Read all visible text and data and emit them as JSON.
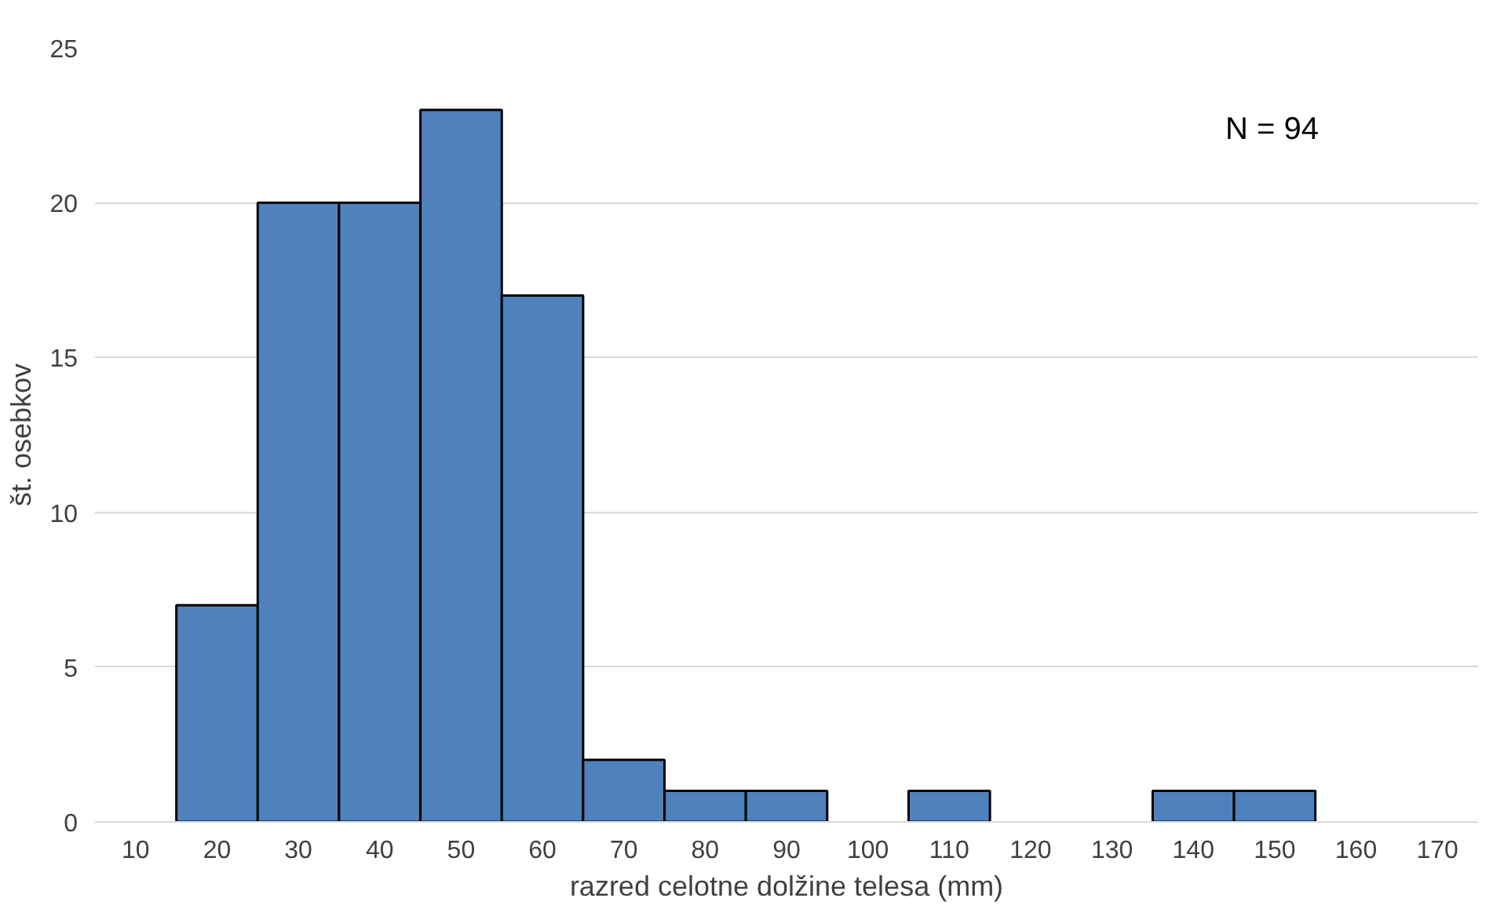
{
  "chart_data": {
    "type": "histogram",
    "xlabel": "razred celotne dolžine telesa (mm)",
    "ylabel": "št. osebkov",
    "bins": [
      15,
      25,
      35,
      45,
      55,
      65,
      75,
      85,
      95,
      105,
      115,
      125,
      135,
      145,
      155
    ],
    "values": [
      7,
      20,
      20,
      23,
      17,
      2,
      1,
      1,
      0,
      1,
      0,
      0,
      1,
      1
    ],
    "color": "#4f81bd",
    "xlim": [
      5,
      175
    ],
    "xticks": [
      10,
      20,
      30,
      40,
      50,
      60,
      70,
      80,
      90,
      100,
      110,
      120,
      130,
      140,
      150,
      160,
      170
    ],
    "ylim": [
      0,
      25
    ],
    "yticks": [
      0,
      5,
      10,
      15,
      20,
      25
    ],
    "grid": "y",
    "legend": false,
    "annotations": [
      "N = 94"
    ]
  }
}
